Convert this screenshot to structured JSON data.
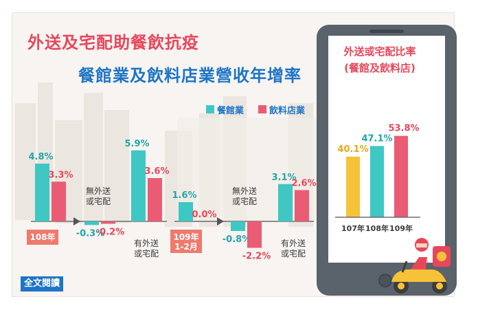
{
  "title_line1": "外送及宅配助餐飲抗疫",
  "title_line2": "餐館業及飲料店業營收年增率",
  "legend": [
    {
      "label": "餐館業",
      "color": "#3fc7c4"
    },
    {
      "label": "飲料店業",
      "color": "#ea5c74"
    }
  ],
  "read_more_button": "全文閱讀",
  "chart_data": [
    {
      "type": "bar",
      "period_label": "108年",
      "categories": [
        "",
        "無外送\n或宅配",
        "有外送\n或宅配"
      ],
      "series": [
        {
          "name": "餐館業",
          "values": [
            4.8,
            -0.3,
            5.9
          ],
          "labels": [
            "4.8%",
            "-0.3%",
            "5.9%"
          ]
        },
        {
          "name": "飲料店業",
          "values": [
            3.3,
            -0.2,
            3.6
          ],
          "labels": [
            "3.3%",
            "-0.2%",
            "3.6%"
          ]
        }
      ]
    },
    {
      "type": "bar",
      "period_label": "109年\n1-2月",
      "categories": [
        "",
        "無外送\n或宅配",
        "有外送\n或宅配"
      ],
      "series": [
        {
          "name": "餐館業",
          "values": [
            1.6,
            -0.8,
            3.1
          ],
          "labels": [
            "1.6%",
            "-0.8%",
            "3.1%"
          ]
        },
        {
          "name": "飲料店業",
          "values": [
            0.0,
            -2.2,
            2.6
          ],
          "labels": [
            "0.0%",
            "-2.2%",
            "2.6%"
          ]
        }
      ]
    },
    {
      "type": "bar",
      "title": "外送或宅配比率\n(餐館及飲料店)",
      "categories": [
        "107年",
        "108年",
        "109年"
      ],
      "values": [
        40.1,
        47.1,
        53.8
      ],
      "labels": [
        "40.1%",
        "47.1%",
        "53.8%"
      ],
      "colors": [
        "#f6c238",
        "#3fc7c4",
        "#ea5c74"
      ]
    }
  ]
}
